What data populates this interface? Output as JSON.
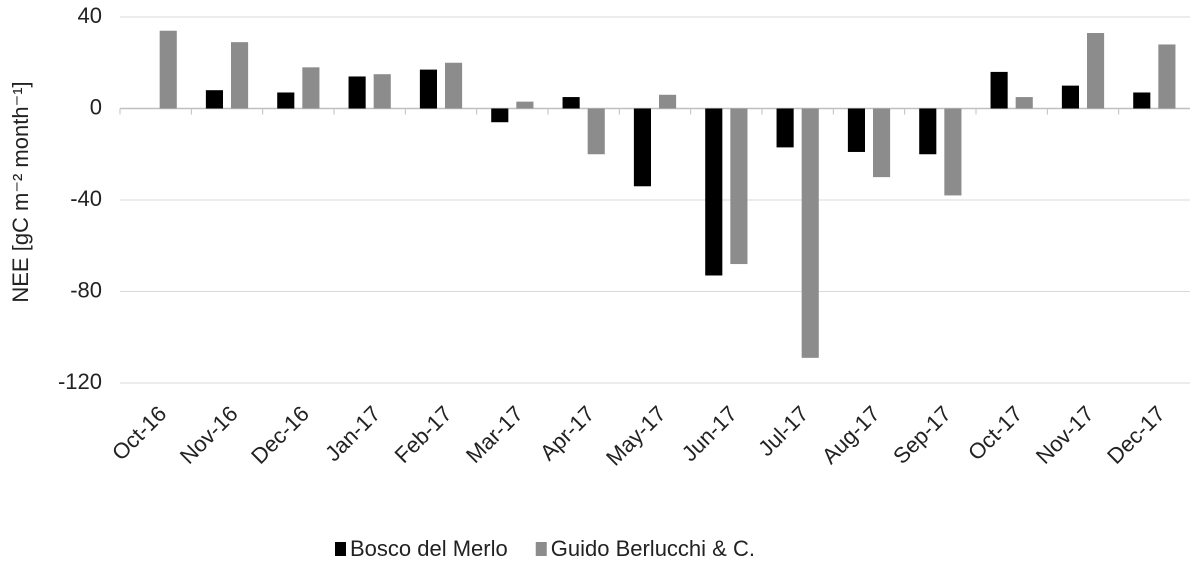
{
  "chart_data": {
    "type": "bar",
    "y_label": "NEE [gC  m⁻² month⁻¹]",
    "categories": [
      "Oct-16",
      "Nov-16",
      "Dec-16",
      "Jan-17",
      "Feb-17",
      "Mar-17",
      "Apr-17",
      "May-17",
      "Jun-17",
      "Jul-17",
      "Aug-17",
      "Sep-17",
      "Oct-17",
      "Nov-17",
      "Dec-17"
    ],
    "series": [
      {
        "name": "Bosco del Merlo",
        "color": "#000000",
        "values": [
          null,
          8,
          7,
          14,
          17,
          -6,
          5,
          -34,
          -73,
          -17,
          -19,
          -20,
          16,
          10,
          7
        ]
      },
      {
        "name": "Guido Berlucchi & C.",
        "color": "#8c8c8c",
        "values": [
          34,
          29,
          18,
          15,
          20,
          3,
          -20,
          6,
          -68,
          -109,
          -30,
          -38,
          5,
          33,
          28
        ]
      }
    ],
    "ylim": [
      -120,
      40
    ],
    "yticks": [
      -120,
      -80,
      -40,
      0,
      40
    ],
    "grid": true
  }
}
